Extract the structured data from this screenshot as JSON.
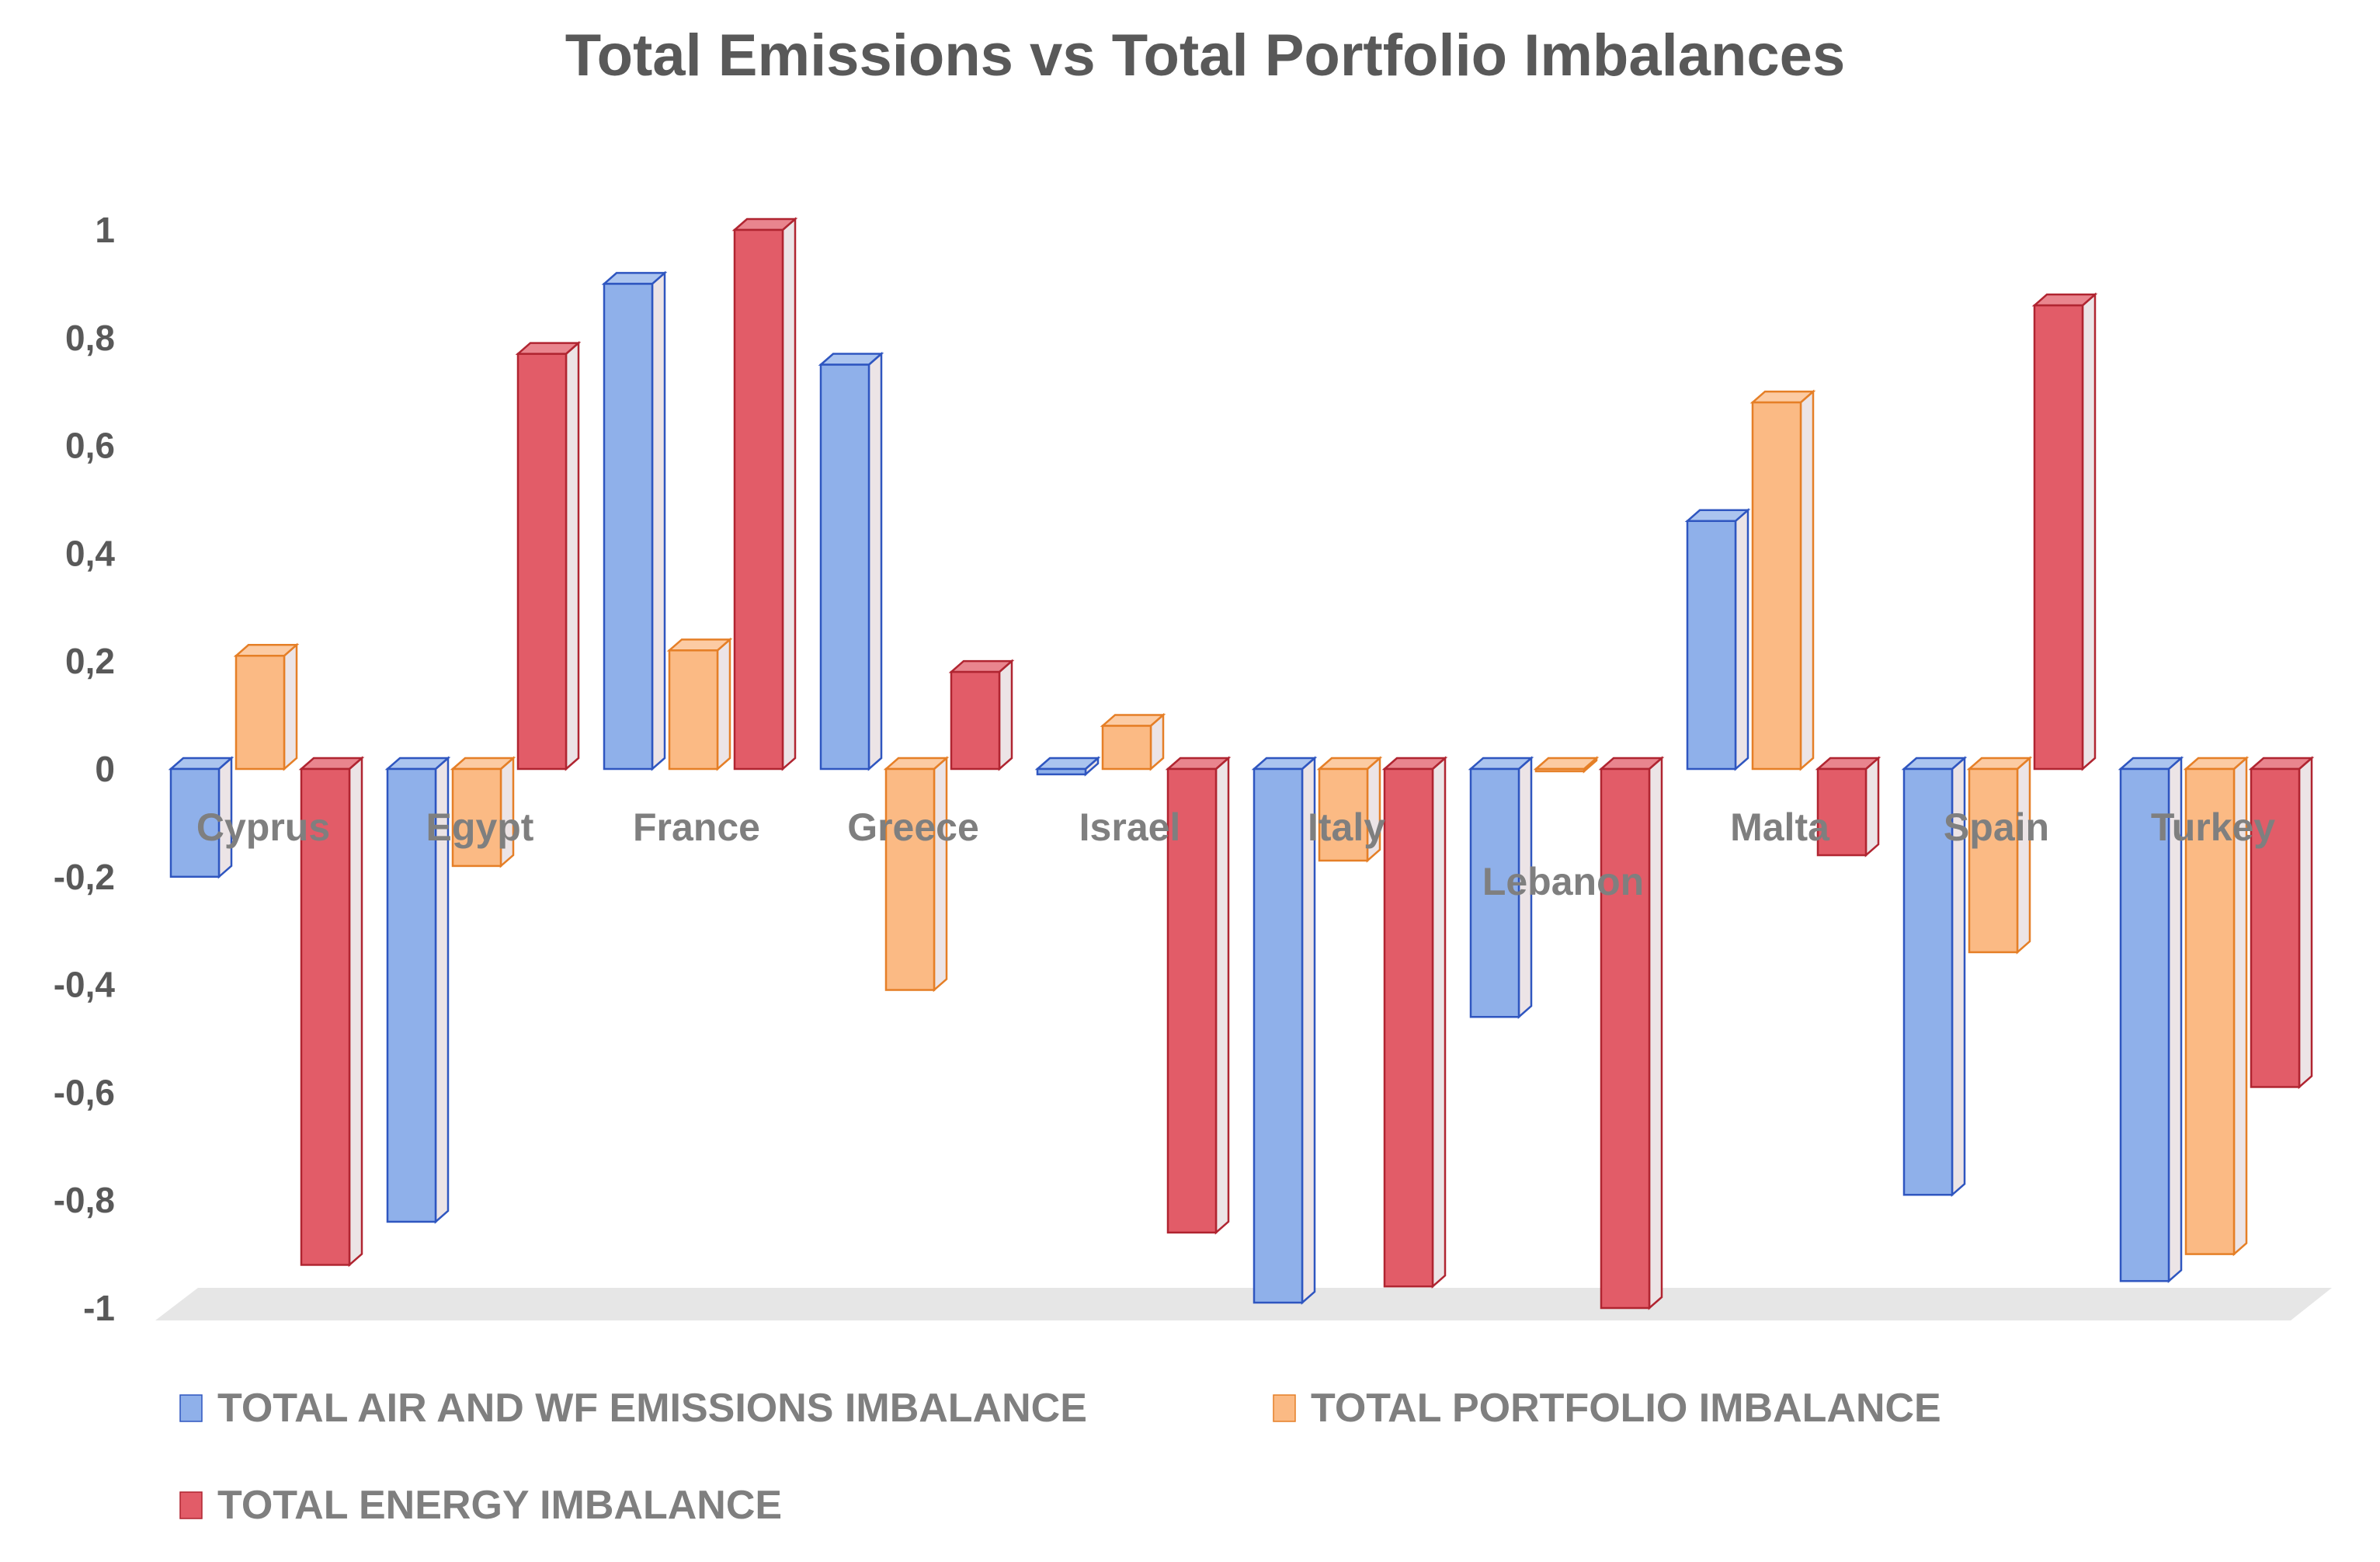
{
  "chart_data": {
    "type": "bar",
    "title": "Total Emissions vs Total Portfolio Imbalances",
    "categories": [
      "Cyprus",
      "Egypt",
      "France",
      "Greece",
      "Israel",
      "Italy",
      "Lebanon",
      "Malta",
      "Spain",
      "Turkey"
    ],
    "series": [
      {
        "name": "TOTAL AIR AND WF EMISSIONS IMBALANCE",
        "color": "#8fb0ea",
        "edge": "#2f56c0",
        "values": [
          -0.2,
          -0.84,
          0.9,
          0.75,
          -0.01,
          -0.99,
          -0.46,
          0.46,
          -0.79,
          -0.95
        ]
      },
      {
        "name": "TOTAL PORTFOLIO IMBALANCE",
        "color": "#fbba84",
        "edge": "#e57f27",
        "values": [
          0.21,
          -0.18,
          0.22,
          -0.41,
          0.08,
          -0.17,
          0.0,
          0.68,
          -0.34,
          -0.9
        ]
      },
      {
        "name": "TOTAL ENERGY IMBALANCE",
        "color": "#e25c68",
        "edge": "#b02531",
        "values": [
          -0.92,
          0.77,
          1.0,
          0.18,
          -0.86,
          -0.96,
          -1.0,
          -0.16,
          0.86,
          -0.59
        ]
      }
    ],
    "yticks": [
      "1",
      "0,8",
      "0,6",
      "0,4",
      "0,2",
      "0",
      "-0,2",
      "-0,4",
      "-0,6",
      "-0,8",
      "-1"
    ],
    "ylim": [
      -1,
      1
    ],
    "legend_position": "bottom",
    "xlabel": "",
    "ylabel": ""
  }
}
